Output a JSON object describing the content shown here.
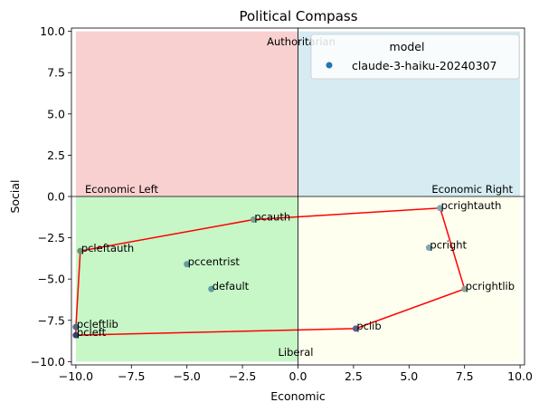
{
  "chart_data": {
    "type": "scatter",
    "title": "Political Compass",
    "xlabel": "Economic",
    "ylabel": "Social",
    "xlim": [
      -10.2,
      10.2
    ],
    "ylim": [
      -10.2,
      10.2
    ],
    "xticks": [
      -10.0,
      -7.5,
      -5.0,
      -2.5,
      0.0,
      2.5,
      5.0,
      7.5,
      10.0
    ],
    "yticks": [
      -10.0,
      -7.5,
      -5.0,
      -2.5,
      0.0,
      2.5,
      5.0,
      7.5,
      10.0
    ],
    "xtick_labels": [
      "−10.0",
      "−7.5",
      "−5.0",
      "−2.5",
      "0.0",
      "2.5",
      "5.0",
      "7.5",
      "10.0"
    ],
    "ytick_labels": [
      "−10.0",
      "−7.5",
      "−5.0",
      "−2.5",
      "0.0",
      "2.5",
      "5.0",
      "7.5",
      "10.0"
    ],
    "grid": false,
    "quadrants": [
      {
        "x": [
          -10,
          0
        ],
        "y": [
          0,
          10
        ],
        "color": "#f4a1a2"
      },
      {
        "x": [
          0,
          10
        ],
        "y": [
          0,
          10
        ],
        "color": "#add8e6"
      },
      {
        "x": [
          -10,
          0
        ],
        "y": [
          -10,
          0
        ],
        "color": "#90ee90"
      },
      {
        "x": [
          0,
          10
        ],
        "y": [
          -10,
          0
        ],
        "color": "#ffffe0"
      }
    ],
    "quadrant_labels": {
      "top": "Authoritarian",
      "bottom": "Liberal",
      "left": "Economic Left",
      "right": "Economic Right"
    },
    "legend": {
      "title": "model",
      "placement": "top-right",
      "entries": [
        {
          "label": "claude-3-haiku-20240307",
          "color": "#1f77b4"
        }
      ]
    },
    "points": [
      {
        "label": "pcauth",
        "x": -2.0,
        "y": -1.4,
        "color": "#7a9d8c"
      },
      {
        "label": "pcrightauth",
        "x": 6.4,
        "y": -0.7,
        "color": "#7ea7b4"
      },
      {
        "label": "pcleftauth",
        "x": -9.8,
        "y": -3.3,
        "color": "#6e8f74"
      },
      {
        "label": "pcright",
        "x": 5.9,
        "y": -3.1,
        "color": "#7ea7b4"
      },
      {
        "label": "pccentrist",
        "x": -5.0,
        "y": -4.1,
        "color": "#5f9ea0"
      },
      {
        "label": "default",
        "x": -3.9,
        "y": -5.6,
        "color": "#5f9ea0"
      },
      {
        "label": "pcrightlib",
        "x": 7.5,
        "y": -5.6,
        "color": "#8aa596"
      },
      {
        "label": "pcleftlib",
        "x": -10.0,
        "y": -7.9,
        "color": "#4e6a8a"
      },
      {
        "label": "pclib",
        "x": 2.6,
        "y": -8.0,
        "color": "#5b5f8f"
      },
      {
        "label": "pcleft",
        "x": -10.0,
        "y": -8.4,
        "color": "#3b3b7a"
      }
    ],
    "polygon": {
      "order": [
        "pcleft",
        "pcleftlib",
        "pcleftauth",
        "pcauth",
        "pcrightauth",
        "pcrightlib",
        "pclib"
      ],
      "color": "#ff0000"
    }
  }
}
